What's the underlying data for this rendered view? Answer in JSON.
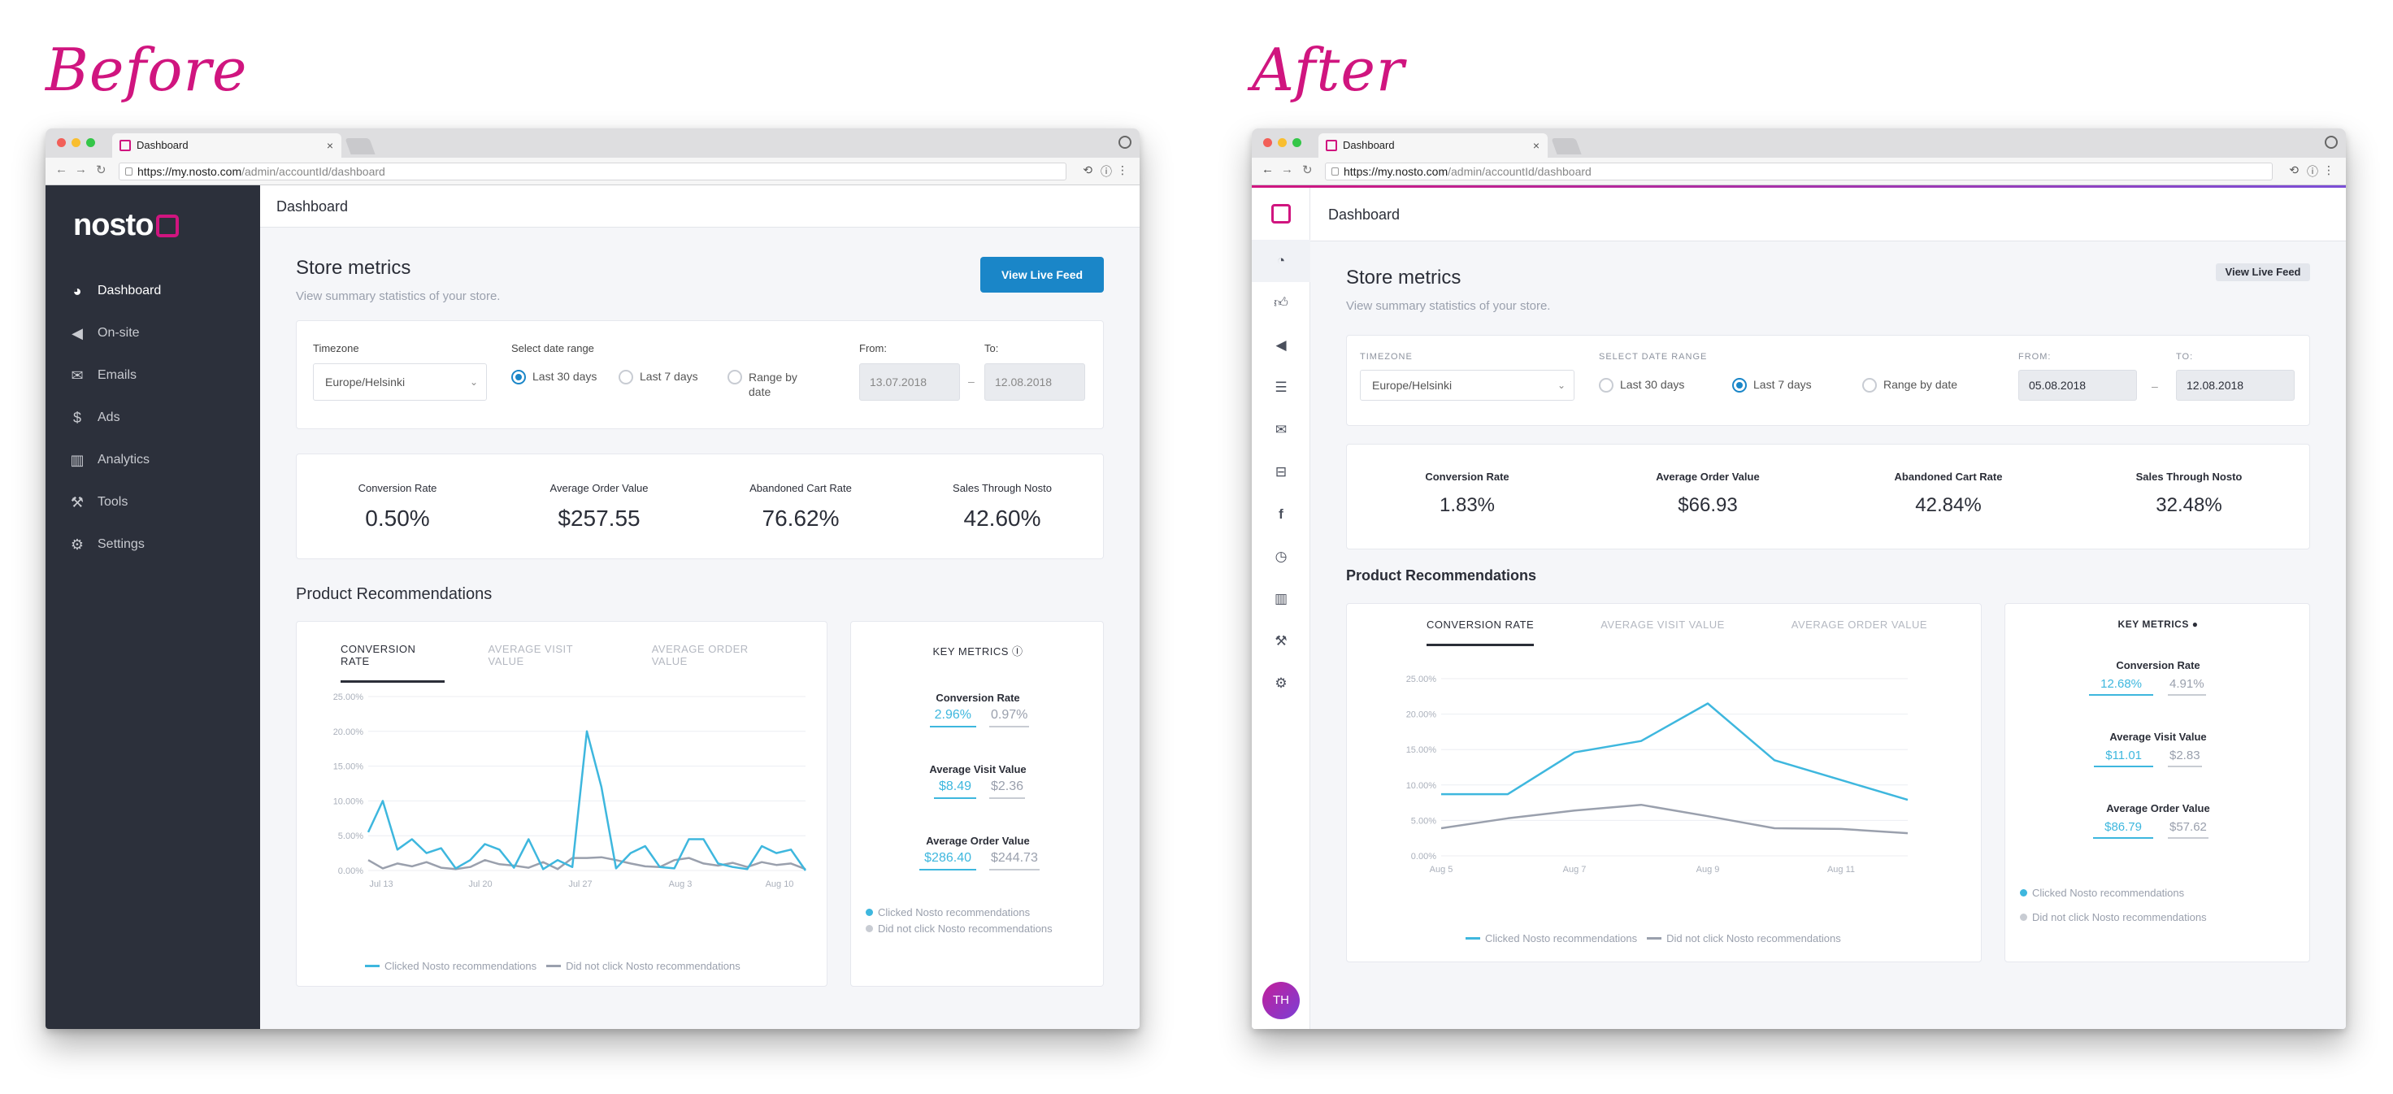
{
  "captions": {
    "before": "Before",
    "after": "After"
  },
  "browser": {
    "tab_title": "Dashboard",
    "url_host": "https://my.nosto.com",
    "url_path": "/admin/accountId/dashboard"
  },
  "before": {
    "logo_text": "nosto",
    "sidebar": {
      "items": [
        {
          "label": "Dashboard",
          "icon": "dashboard-gauge-icon"
        },
        {
          "label": "On-site",
          "icon": "megaphone-icon"
        },
        {
          "label": "Emails",
          "icon": "envelope-icon"
        },
        {
          "label": "Ads",
          "icon": "dollar-icon"
        },
        {
          "label": "Analytics",
          "icon": "bar-chart-icon"
        },
        {
          "label": "Tools",
          "icon": "wrench-icon"
        },
        {
          "label": "Settings",
          "icon": "gear-icon"
        }
      ]
    },
    "header_title": "Dashboard",
    "store_metrics": {
      "title": "Store metrics",
      "subtitle": "View summary statistics of your store.",
      "button": "View Live Feed"
    },
    "filters": {
      "timezone_label": "Timezone",
      "timezone_value": "Europe/Helsinki",
      "range_label": "Select date range",
      "options": [
        "Last 30 days",
        "Last 7 days",
        "Range by",
        "date"
      ],
      "selected": "Last 30 days",
      "from_label": "From:",
      "to_label": "To:",
      "from_value": "13.07.2018",
      "to_value": "12.08.2018",
      "separator": "–"
    },
    "metrics": [
      {
        "label": "Conversion Rate",
        "value": "0.50%"
      },
      {
        "label": "Average Order Value",
        "value": "$257.55"
      },
      {
        "label": "Abandoned Cart Rate",
        "value": "76.62%"
      },
      {
        "label": "Sales Through Nosto",
        "value": "42.60%"
      }
    ],
    "reco_title": "Product Recommendations",
    "chart_tabs": [
      "Conversion Rate",
      "Average Visit Value",
      "Average Order Value"
    ],
    "key_metrics": {
      "title": "Key Metrics ⓘ",
      "items": [
        {
          "name": "Conversion Rate",
          "clicked": "2.96%",
          "not_clicked": "0.97%"
        },
        {
          "name": "Average Visit Value",
          "clicked": "$8.49",
          "not_clicked": "$2.36"
        },
        {
          "name": "Average Order Value",
          "clicked": "$286.40",
          "not_clicked": "$244.73"
        }
      ],
      "legend_clicked": "Clicked Nosto recommendations",
      "legend_not": "Did not click Nosto recommendations"
    },
    "legend_clicked": "Clicked Nosto recommendations",
    "legend_not": "Did not click Nosto recommendations"
  },
  "after": {
    "sidebar_icons": [
      "nosto-logo-icon",
      "dashboard-gauge-icon",
      "thumbs-up-icon",
      "megaphone-icon",
      "list-icon",
      "envelope-icon",
      "inbox-icon",
      "facebook-icon",
      "pie-chart-icon",
      "bar-chart-icon",
      "wrench-icon",
      "gear-icon"
    ],
    "avatar_initials": "TH",
    "header_title": "Dashboard",
    "store_metrics": {
      "title": "Store metrics",
      "subtitle": "View summary statistics of your store.",
      "button": "View Live Feed"
    },
    "filters": {
      "timezone_label": "Timezone",
      "timezone_value": "Europe/Helsinki",
      "range_label": "Select date range",
      "options": [
        "Last 30 days",
        "Last 7 days",
        "Range by date"
      ],
      "selected": "Last 7 days",
      "from_label": "From:",
      "to_label": "To:",
      "from_value": "05.08.2018",
      "to_value": "12.08.2018",
      "separator": "–"
    },
    "metrics": [
      {
        "label": "Conversion Rate",
        "value": "1.83%"
      },
      {
        "label": "Average Order Value",
        "value": "$66.93"
      },
      {
        "label": "Abandoned Cart Rate",
        "value": "42.84%"
      },
      {
        "label": "Sales Through Nosto",
        "value": "32.48%"
      }
    ],
    "reco_title": "Product Recommendations",
    "chart_tabs": [
      "Conversion Rate",
      "Average Visit Value",
      "Average Order Value"
    ],
    "key_metrics": {
      "title": "Key Metrics",
      "items": [
        {
          "name": "Conversion Rate",
          "clicked": "12.68%",
          "not_clicked": "4.91%"
        },
        {
          "name": "Average Visit Value",
          "clicked": "$11.01",
          "not_clicked": "$2.83"
        },
        {
          "name": "Average Order Value",
          "clicked": "$86.79",
          "not_clicked": "$57.62"
        }
      ],
      "legend_clicked": "Clicked Nosto recommendations",
      "legend_not": "Did not click Nosto recommendations"
    },
    "legend_clicked": "Clicked Nosto recommendations",
    "legend_not": "Did not click Nosto recommendations"
  },
  "colors": {
    "accent_magenta": "#d0157f",
    "primary_blue": "#1a86c8",
    "series_clicked": "#3eb7de",
    "series_not": "#9aa0ad",
    "sidebar_dark": "#2c303b"
  },
  "chart_data": [
    {
      "type": "line",
      "title": "",
      "x_ticks": [
        "Jul 13",
        "Jul 20",
        "Jul 27",
        "Aug 3",
        "Aug 10"
      ],
      "y_ticks": [
        "0.00%",
        "5.00%",
        "10.00%",
        "15.00%",
        "20.00%",
        "25.00%"
      ],
      "ylim": [
        0,
        25
      ],
      "x": [
        1,
        2,
        3,
        4,
        5,
        6,
        7,
        8,
        9,
        10,
        11,
        12,
        13,
        14,
        15,
        16,
        17,
        18,
        19,
        20,
        21,
        22,
        23,
        24,
        25,
        26,
        27,
        28,
        29,
        30,
        31
      ],
      "series": [
        {
          "name": "Clicked Nosto recommendations",
          "values": [
            5.5,
            10,
            3,
            4.5,
            2.5,
            3.2,
            0.3,
            1.5,
            3.8,
            3,
            0.4,
            4.5,
            0.2,
            1.5,
            0.5,
            20,
            12,
            0.3,
            2.5,
            3.5,
            0.5,
            0.3,
            4.5,
            4.5,
            1,
            0.5,
            0.2,
            3.5,
            2.5,
            3,
            0
          ]
        },
        {
          "name": "Did not click Nosto recommendations",
          "values": [
            1.5,
            0.3,
            1,
            0.6,
            1.2,
            0.4,
            0.2,
            0.5,
            1.5,
            0.9,
            0.7,
            0.4,
            1.2,
            0.2,
            1.8,
            1.8,
            1.9,
            1.5,
            1,
            0.6,
            0.5,
            1.5,
            1.8,
            1,
            0.7,
            1.1,
            0.5,
            1.2,
            0.8,
            1,
            0.2
          ]
        }
      ]
    },
    {
      "type": "line",
      "title": "",
      "x_ticks": [
        "Aug 5",
        "Aug 7",
        "Aug 9",
        "Aug 11"
      ],
      "y_ticks": [
        "0.00%",
        "5.00%",
        "10.00%",
        "15.00%",
        "20.00%",
        "25.00%"
      ],
      "ylim": [
        0,
        25
      ],
      "x": [
        "Aug 5",
        "Aug 6",
        "Aug 7",
        "Aug 8",
        "Aug 9",
        "Aug 10",
        "Aug 11",
        "Aug 12"
      ],
      "series": [
        {
          "name": "Clicked Nosto recommendations",
          "values": [
            8.7,
            8.7,
            14.6,
            16.2,
            21.5,
            13.5,
            10.7,
            7.9
          ]
        },
        {
          "name": "Did not click Nosto recommendations",
          "values": [
            3.9,
            5.3,
            6.4,
            7.2,
            5.6,
            3.9,
            3.8,
            3.2
          ]
        }
      ]
    }
  ]
}
